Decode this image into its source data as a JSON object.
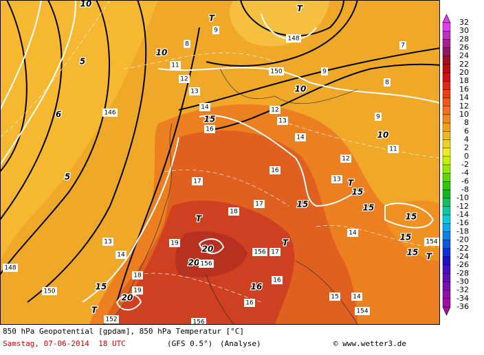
{
  "map": {
    "labels": [
      "10",
      "5",
      "6",
      "5",
      "10",
      "10",
      "10",
      "15",
      "15",
      "15",
      "15",
      "15",
      "15",
      "15",
      "15",
      "20",
      "20",
      "20",
      "16",
      "T",
      "T",
      "T",
      "T",
      "T",
      "T",
      "T",
      "148",
      "150",
      "146",
      "148",
      "150",
      "152",
      "154",
      "154",
      "9",
      "8",
      "11",
      "12",
      "13",
      "14",
      "16",
      "17",
      "18",
      "17",
      "16",
      "14",
      "13",
      "12",
      "11",
      "12",
      "13",
      "14",
      "9",
      "8",
      "9",
      "7",
      "13",
      "14",
      "19",
      "18",
      "19",
      "16",
      "16",
      "15",
      "14",
      "156",
      "17",
      "156",
      "156"
    ]
  },
  "colorbar": {
    "labels": [
      32,
      30,
      28,
      26,
      24,
      22,
      20,
      18,
      16,
      14,
      12,
      10,
      8,
      6,
      4,
      2,
      0,
      -2,
      -4,
      -6,
      -8,
      -10,
      -12,
      -14,
      -16,
      -18,
      -20,
      -22,
      -24,
      -26,
      -28,
      -30,
      -32,
      -34,
      -36
    ],
    "colors": [
      "#e040e8",
      "#c030c0",
      "#a82090",
      "#901860",
      "#a01020",
      "#b81010",
      "#d01010",
      "#e02810",
      "#e84010",
      "#f05818",
      "#f07020",
      "#f08820",
      "#f0a020",
      "#f0b820",
      "#f0d020",
      "#f0e820",
      "#c8f000",
      "#98e800",
      "#60d800",
      "#30c800",
      "#10b820",
      "#10c060",
      "#10c8a0",
      "#10c8d8",
      "#10a8e8",
      "#1080e8",
      "#1058e0",
      "#1030d8",
      "#2010c8",
      "#4810c0",
      "#6010b8",
      "#7810b0",
      "#9010a8",
      "#a010a0"
    ]
  },
  "footer": {
    "line1": "850 hPa Geopotential [gpdam], 850 hPa Temperatur [°C]",
    "date": "Samstag, 07-06-2014  18 UTC",
    "model": "(GFS 0.5°)",
    "run": "(Analyse)",
    "credit": "© www.wetter3.de"
  }
}
